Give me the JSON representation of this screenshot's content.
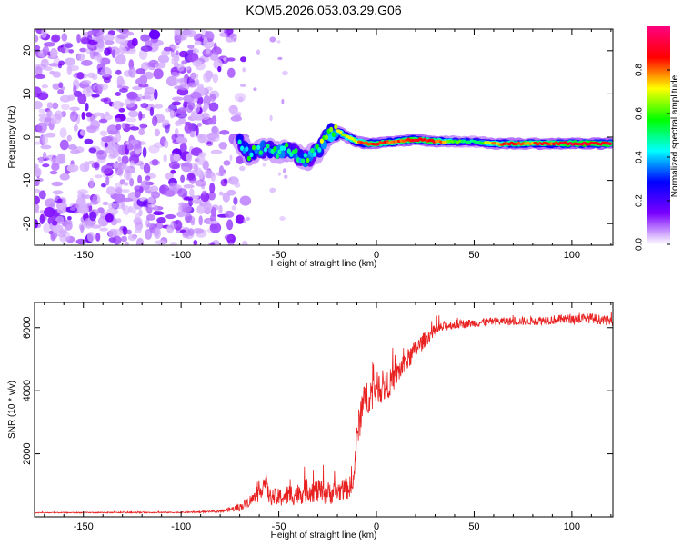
{
  "title": "KOM5.2026.053.03.29.G06",
  "chart_data": [
    {
      "type": "heatmap",
      "name": "spectrogram",
      "xlabel": "Height of straight line (km)",
      "ylabel": "Frequency (Hz)",
      "xlim": [
        -175,
        121
      ],
      "ylim": [
        -25,
        25
      ],
      "xticks": [
        -150,
        -100,
        -50,
        0,
        50,
        100
      ],
      "yticks": [
        -20,
        -10,
        0,
        10,
        20
      ],
      "xtick_labels": [
        "-150",
        "-100",
        "-50",
        "0",
        "50",
        "100"
      ],
      "ytick_labels": [
        "-20",
        "-10",
        "0",
        "10",
        "20"
      ],
      "colorbar": {
        "label": "Normalized spectral amplitude",
        "range": [
          0.0,
          1.0
        ],
        "ticks": [
          0.0,
          0.2,
          0.4,
          0.6,
          0.8
        ],
        "tick_labels": [
          "0.0",
          "0.2",
          "0.4",
          "0.6",
          "0.8"
        ],
        "colors": [
          "#ffffff",
          "#7a00ff",
          "#0000ff",
          "#00ffff",
          "#00ff00",
          "#ffff00",
          "#ff0000",
          "#ff0080"
        ]
      },
      "noise_region_km": [
        -175,
        -75
      ],
      "signal_track": [
        {
          "x": -70,
          "y": -1.0,
          "a": 0.35
        },
        {
          "x": -65,
          "y": -4.0,
          "a": 0.45
        },
        {
          "x": -60,
          "y": -2.5,
          "a": 0.4
        },
        {
          "x": -55,
          "y": -3.0,
          "a": 0.42
        },
        {
          "x": -50,
          "y": -3.5,
          "a": 0.45
        },
        {
          "x": -45,
          "y": -2.5,
          "a": 0.42
        },
        {
          "x": -40,
          "y": -4.5,
          "a": 0.45
        },
        {
          "x": -35,
          "y": -5.0,
          "a": 0.45
        },
        {
          "x": -30,
          "y": -3.0,
          "a": 0.5
        },
        {
          "x": -25,
          "y": 0.5,
          "a": 0.6
        },
        {
          "x": -20,
          "y": 1.5,
          "a": 0.65
        },
        {
          "x": -15,
          "y": 0.0,
          "a": 0.7
        },
        {
          "x": -10,
          "y": -1.0,
          "a": 0.75
        },
        {
          "x": -5,
          "y": -1.5,
          "a": 0.85
        },
        {
          "x": 0,
          "y": -1.5,
          "a": 0.85
        },
        {
          "x": 10,
          "y": -1.0,
          "a": 0.8
        },
        {
          "x": 20,
          "y": -0.5,
          "a": 0.9
        },
        {
          "x": 30,
          "y": -1.0,
          "a": 0.85
        },
        {
          "x": 40,
          "y": -1.0,
          "a": 0.6
        },
        {
          "x": 50,
          "y": -1.0,
          "a": 0.5
        },
        {
          "x": 60,
          "y": -1.5,
          "a": 0.75
        },
        {
          "x": 70,
          "y": -1.5,
          "a": 0.85
        },
        {
          "x": 80,
          "y": -1.5,
          "a": 0.8
        },
        {
          "x": 90,
          "y": -1.5,
          "a": 0.85
        },
        {
          "x": 100,
          "y": -1.5,
          "a": 0.9
        },
        {
          "x": 110,
          "y": -1.5,
          "a": 0.9
        },
        {
          "x": 120,
          "y": -1.5,
          "a": 0.9
        }
      ]
    },
    {
      "type": "line",
      "name": "snr",
      "xlabel": "Height of straight line (km)",
      "ylabel": "SNR (10 * v/v)",
      "xlim": [
        -175,
        121
      ],
      "ylim": [
        0,
        6800
      ],
      "xticks": [
        -150,
        -100,
        -50,
        0,
        50,
        100
      ],
      "yticks": [
        2000,
        4000,
        6000
      ],
      "xtick_labels": [
        "-150",
        "-100",
        "-50",
        "0",
        "50",
        "100"
      ],
      "ytick_labels": [
        "2000",
        "4000",
        "6000"
      ],
      "color": "#e82020",
      "series": [
        {
          "name": "SNR",
          "x": [
            -175,
            -100,
            -80,
            -70,
            -65,
            -60,
            -57,
            -55,
            -50,
            -45,
            -40,
            -35,
            -30,
            -25,
            -20,
            -15,
            -12,
            -10,
            -8,
            -5,
            0,
            5,
            10,
            15,
            20,
            25,
            30,
            35,
            40,
            50,
            60,
            70,
            80,
            90,
            100,
            110,
            120
          ],
          "y": [
            130,
            140,
            170,
            300,
            500,
            700,
            1200,
            650,
            600,
            700,
            720,
            850,
            800,
            750,
            800,
            900,
            1000,
            2500,
            3300,
            3800,
            4100,
            4100,
            4500,
            4900,
            5300,
            5650,
            5900,
            6050,
            6100,
            6150,
            6200,
            6200,
            6220,
            6250,
            6280,
            6300,
            6200
          ],
          "noise": [
            15,
            20,
            30,
            120,
            180,
            250,
            300,
            250,
            300,
            350,
            350,
            380,
            380,
            380,
            350,
            350,
            350,
            500,
            600,
            600,
            500,
            450,
            400,
            350,
            300,
            250,
            200,
            160,
            140,
            130,
            130,
            130,
            140,
            150,
            150,
            160,
            150
          ]
        }
      ]
    }
  ]
}
